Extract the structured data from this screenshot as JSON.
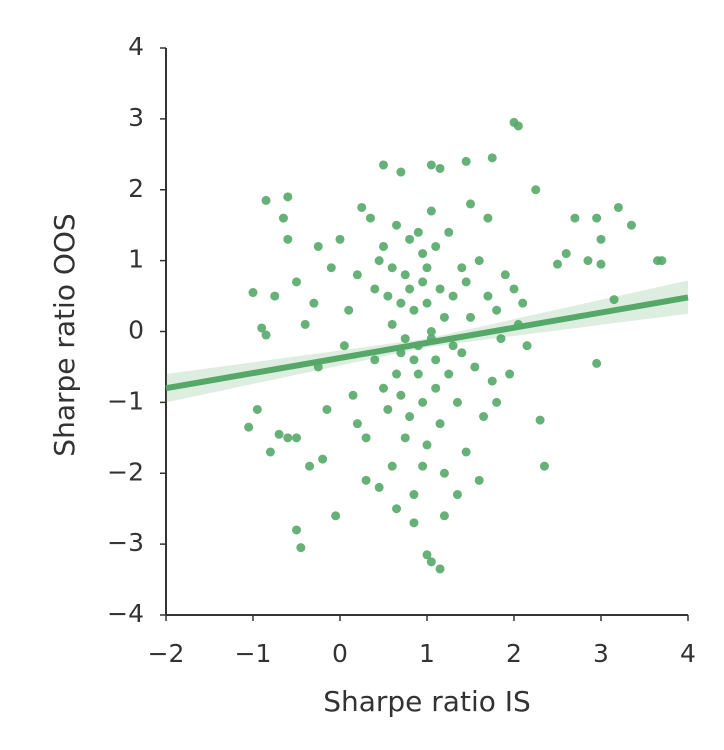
{
  "chart_data": {
    "type": "scatter",
    "xlabel": "Sharpe ratio IS",
    "ylabel": "Sharpe ratio OOS",
    "color": "#55a868",
    "x": [
      2,
      2.05,
      1.75,
      1.45,
      0.5,
      1.05,
      1.15,
      0.7,
      2.25,
      -0.85,
      -0.6,
      -0.65,
      -0.6,
      -0.25,
      3.2,
      2.7,
      2.95,
      3.35,
      3.0,
      2.6,
      2.85,
      2.5,
      3.0,
      3.65,
      3.7,
      3.15,
      2.95,
      2.3,
      2.35,
      -0.5,
      -0.45,
      -0.05,
      1.0,
      1.05,
      1.15,
      0.85,
      -1.0,
      -1.05,
      -0.95,
      -0.8,
      -0.7,
      -0.6,
      -0.5,
      -0.35,
      -0.2,
      -0.85,
      -0.9,
      -0.75,
      -0.5,
      -0.4,
      -0.25,
      -0.1,
      0.0,
      0.1,
      0.15,
      0.2,
      0.25,
      0.3,
      0.35,
      0.4,
      0.45,
      0.5,
      0.55,
      0.6,
      0.65,
      0.7,
      0.75,
      0.8,
      0.85,
      0.9,
      0.95,
      1.0,
      1.05,
      1.1,
      1.15,
      1.2,
      1.25,
      1.3,
      1.35,
      1.4,
      1.45,
      1.5,
      1.55,
      1.6,
      1.65,
      1.7,
      1.75,
      1.8,
      1.85,
      1.9,
      2.0,
      2.05,
      2.1,
      2.15,
      1.95,
      0.6,
      0.7,
      0.8,
      0.9,
      1.0,
      1.1,
      1.2,
      0.75,
      0.85,
      0.95,
      1.05,
      0.65,
      0.55,
      0.95,
      1.15,
      1.25,
      0.8,
      1.0,
      0.9,
      0.7,
      1.3,
      1.4,
      0.6,
      1.1,
      0.85,
      1.05,
      0.75,
      1.35,
      1.6,
      0.5,
      0.4,
      0.3,
      0.2,
      0.05,
      -0.15,
      -0.3,
      1.7,
      1.5,
      0.45,
      1.8,
      1.2,
      0.65,
      0.95,
      1.45
    ],
    "values": [
      2.95,
      2.9,
      2.45,
      2.4,
      2.35,
      2.35,
      2.3,
      2.25,
      2.0,
      1.85,
      1.9,
      1.6,
      1.3,
      1.2,
      1.75,
      1.6,
      1.6,
      1.5,
      1.3,
      1.1,
      1.0,
      0.95,
      0.95,
      1.0,
      1.0,
      0.45,
      -0.45,
      -1.25,
      -1.9,
      -2.8,
      -3.05,
      -2.6,
      -3.15,
      -3.25,
      -3.35,
      -2.7,
      0.55,
      -1.35,
      -1.1,
      -1.7,
      -1.45,
      -1.5,
      -1.5,
      -1.9,
      -1.8,
      -0.05,
      0.05,
      0.5,
      0.7,
      0.1,
      -0.5,
      0.9,
      1.3,
      0.3,
      -0.9,
      -1.3,
      1.75,
      -2.1,
      1.6,
      -0.4,
      -2.2,
      1.2,
      0.5,
      -1.9,
      1.5,
      -0.3,
      0.8,
      -1.2,
      0.3,
      -0.6,
      1.1,
      -1.6,
      0.0,
      -0.8,
      0.6,
      -2.0,
      1.4,
      -0.2,
      -1.0,
      0.9,
      -1.7,
      0.2,
      -0.5,
      1.0,
      -1.2,
      0.5,
      -0.7,
      0.3,
      -0.1,
      0.8,
      0.6,
      0.1,
      0.4,
      -0.2,
      -0.6,
      0.1,
      -0.9,
      0.6,
      -0.2,
      0.4,
      -0.4,
      0.2,
      -1.5,
      -2.3,
      -1.0,
      1.7,
      -0.6,
      -1.1,
      0.7,
      -1.3,
      -0.6,
      1.3,
      0.9,
      1.4,
      0.4,
      0.5,
      -0.3,
      0.9,
      1.2,
      -0.4,
      -0.1,
      -0.1,
      -2.3,
      -2.1,
      -0.8,
      0.6,
      -1.5,
      0.8,
      -0.2,
      -1.1,
      0.4,
      1.6,
      1.8,
      1.0,
      -1.0,
      -2.6,
      -2.5,
      -1.9,
      0.7
    ],
    "fit": {
      "x": [
        -2,
        4
      ],
      "y": [
        -0.8,
        0.48
      ]
    },
    "ci": {
      "x": [
        -2,
        1,
        4
      ],
      "upper": [
        -0.6,
        -0.1,
        0.72
      ],
      "lower": [
        -1.0,
        -0.22,
        0.25
      ]
    },
    "xlim": [
      -2,
      4
    ],
    "xticks": [
      {
        "value": -2,
        "label": "−2"
      },
      {
        "value": -1,
        "label": "−1"
      },
      0,
      1,
      2,
      3,
      4
    ],
    "ylim": [
      -4,
      4
    ],
    "yticks": [
      {
        "value": -4,
        "label": "−4"
      },
      {
        "value": -3,
        "label": "−3"
      },
      {
        "value": -2,
        "label": "−2"
      },
      {
        "value": -1,
        "label": "−1"
      },
      0,
      1,
      2,
      3,
      4
    ]
  }
}
